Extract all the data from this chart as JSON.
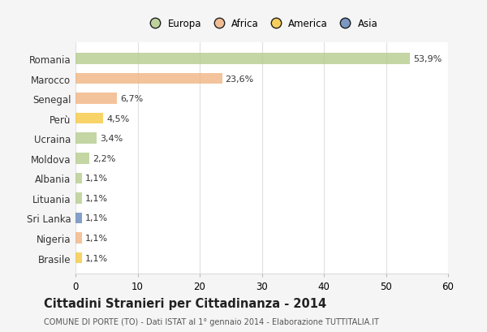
{
  "countries": [
    "Romania",
    "Marocco",
    "Senegal",
    "Perù",
    "Ucraina",
    "Moldova",
    "Albania",
    "Lituania",
    "Sri Lanka",
    "Nigeria",
    "Brasile"
  ],
  "values": [
    53.9,
    23.6,
    6.7,
    4.5,
    3.4,
    2.2,
    1.1,
    1.1,
    1.1,
    1.1,
    1.1
  ],
  "labels": [
    "53,9%",
    "23,6%",
    "6,7%",
    "4,5%",
    "3,4%",
    "2,2%",
    "1,1%",
    "1,1%",
    "1,1%",
    "1,1%",
    "1,1%"
  ],
  "colors": [
    "#b5cc8e",
    "#f0b482",
    "#f0b482",
    "#f5c842",
    "#b5cc8e",
    "#b5cc8e",
    "#b5cc8e",
    "#b5cc8e",
    "#6688bb",
    "#f0b482",
    "#f5c842"
  ],
  "legend_labels": [
    "Europa",
    "Africa",
    "America",
    "Asia"
  ],
  "legend_colors": [
    "#b5cc8e",
    "#f0b482",
    "#f5c842",
    "#6688bb"
  ],
  "title": "Cittadini Stranieri per Cittadinanza - 2014",
  "subtitle": "COMUNE DI PORTE (TO) - Dati ISTAT al 1° gennaio 2014 - Elaborazione TUTTITALIA.IT",
  "xlim": [
    0,
    60
  ],
  "xticks": [
    0,
    10,
    20,
    30,
    40,
    50,
    60
  ],
  "background_color": "#f5f5f5",
  "plot_bg_color": "#ffffff",
  "grid_color": "#e0e0e0"
}
